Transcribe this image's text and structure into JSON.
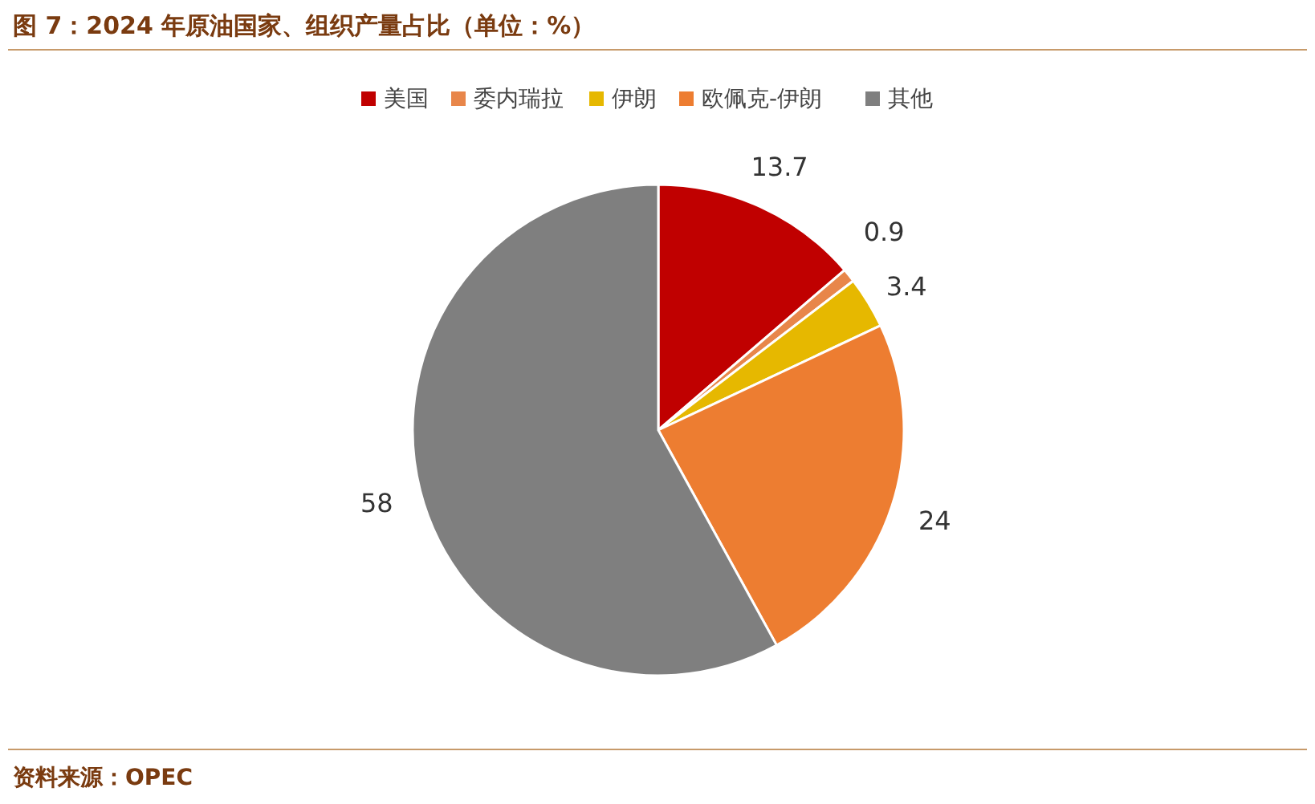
{
  "chart_data": {
    "type": "pie",
    "title": "图 7：2024 年原油国家、组织产量占比（单位：%）",
    "categories": [
      "美国",
      "委内瑞拉",
      "伊朗",
      "欧佩克-伊朗",
      "其他"
    ],
    "values": [
      13.7,
      0.9,
      3.4,
      24,
      58
    ],
    "colors": [
      "#c00000",
      "#e8864a",
      "#e6b800",
      "#ed7d31",
      "#7f7f7f"
    ],
    "data_labels": true,
    "legend": "top",
    "annotations": [
      "资料来源：OPEC"
    ]
  }
}
